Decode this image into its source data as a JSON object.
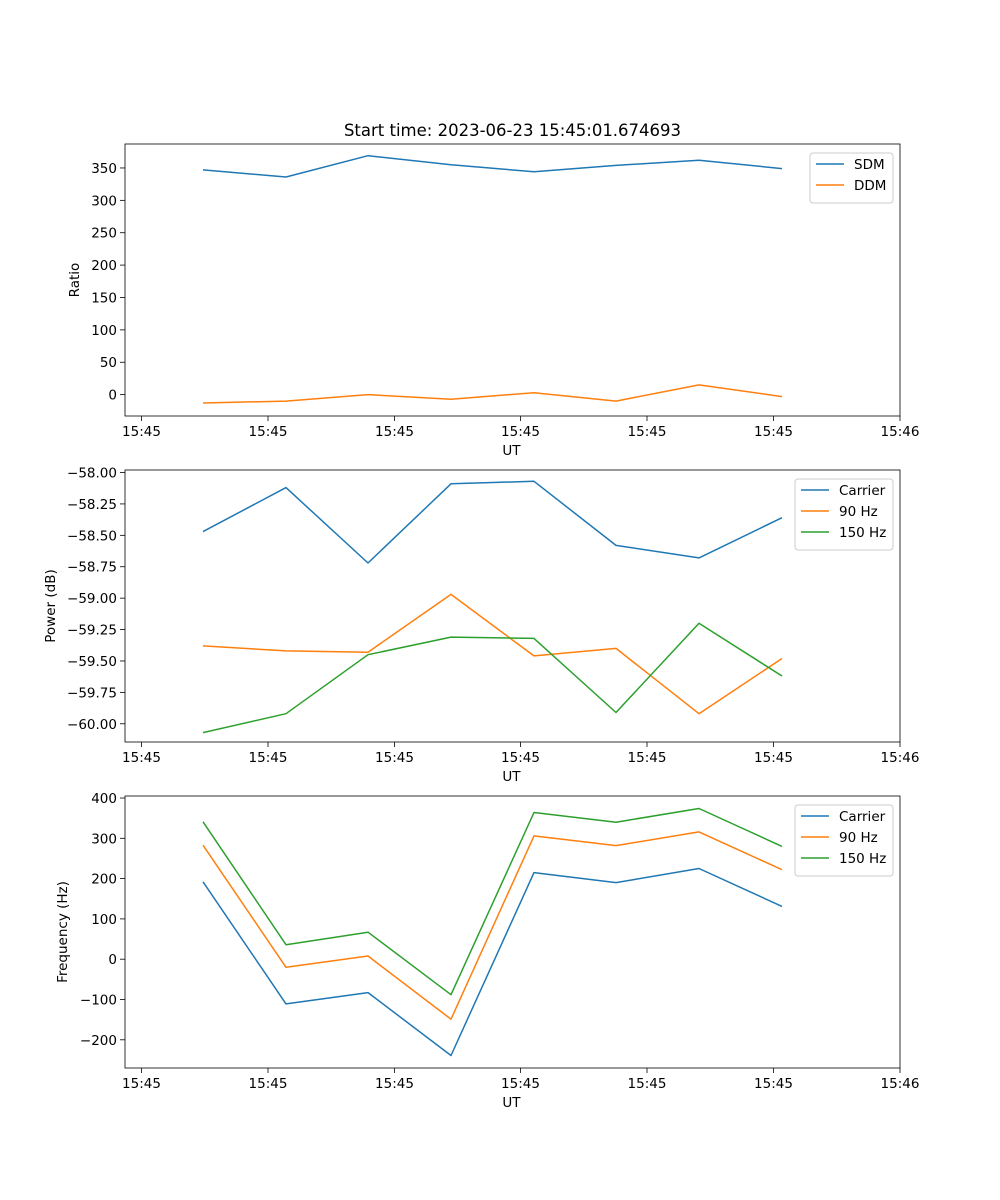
{
  "chart_data": [
    {
      "type": "line",
      "title": "Start time: 2023-06-23 15:45:01.674693",
      "xlabel": "UT",
      "ylabel": "Ratio",
      "x_tick_labels": [
        "15:45",
        "15:45",
        "15:45",
        "15:45",
        "15:45",
        "15:45",
        "15:46"
      ],
      "y_ticks": [
        0,
        50,
        100,
        150,
        200,
        250,
        300,
        350
      ],
      "ylim": [
        -33,
        387
      ],
      "legend_position": "upper right",
      "series": [
        {
          "name": "SDM",
          "color": "#1f77b4",
          "values": [
            347,
            336,
            369,
            355,
            344,
            354,
            362,
            349
          ]
        },
        {
          "name": "DDM",
          "color": "#ff7f0e",
          "values": [
            -13,
            -10,
            0,
            -7,
            3,
            -10,
            15,
            -3
          ]
        }
      ]
    },
    {
      "type": "line",
      "title": "",
      "xlabel": "UT",
      "ylabel": "Power (dB)",
      "x_tick_labels": [
        "15:45",
        "15:45",
        "15:45",
        "15:45",
        "15:45",
        "15:45",
        "15:46"
      ],
      "y_ticks": [
        -60.0,
        -59.75,
        -59.5,
        -59.25,
        -59.0,
        -58.75,
        -58.5,
        -58.25,
        -58.0
      ],
      "y_tick_labels": [
        "−60.00",
        "−59.75",
        "−59.50",
        "−59.25",
        "−59.00",
        "−58.75",
        "−58.50",
        "−58.25",
        "−58.00"
      ],
      "ylim": [
        -60.145,
        -57.98
      ],
      "legend_position": "upper right",
      "series": [
        {
          "name": "Carrier",
          "color": "#1f77b4",
          "values": [
            -58.47,
            -58.12,
            -58.72,
            -58.09,
            -58.07,
            -58.58,
            -58.68,
            -58.36
          ]
        },
        {
          "name": "90 Hz",
          "color": "#ff7f0e",
          "values": [
            -59.38,
            -59.42,
            -59.43,
            -58.97,
            -59.46,
            -59.4,
            -59.92,
            -59.48
          ]
        },
        {
          "name": "150 Hz",
          "color": "#2ca02c",
          "values": [
            -60.07,
            -59.92,
            -59.45,
            -59.31,
            -59.32,
            -59.91,
            -59.2,
            -59.62
          ]
        }
      ]
    },
    {
      "type": "line",
      "title": "",
      "xlabel": "UT",
      "ylabel": "Frequency (Hz)",
      "x_tick_labels": [
        "15:45",
        "15:45",
        "15:45",
        "15:45",
        "15:45",
        "15:45",
        "15:46"
      ],
      "y_ticks": [
        -200,
        -100,
        0,
        100,
        200,
        300,
        400
      ],
      "y_tick_labels": [
        "−200",
        "−100",
        "0",
        "100",
        "200",
        "300",
        "400"
      ],
      "ylim": [
        -270,
        405
      ],
      "legend_position": "upper right",
      "series": [
        {
          "name": "Carrier",
          "color": "#1f77b4",
          "values": [
            192,
            -111,
            -83,
            -239,
            215,
            190,
            225,
            131
          ]
        },
        {
          "name": "90 Hz",
          "color": "#ff7f0e",
          "values": [
            283,
            -20,
            8,
            -149,
            306,
            282,
            316,
            222
          ]
        },
        {
          "name": "150 Hz",
          "color": "#2ca02c",
          "values": [
            341,
            36,
            67,
            -88,
            364,
            340,
            374,
            280
          ]
        }
      ]
    }
  ]
}
